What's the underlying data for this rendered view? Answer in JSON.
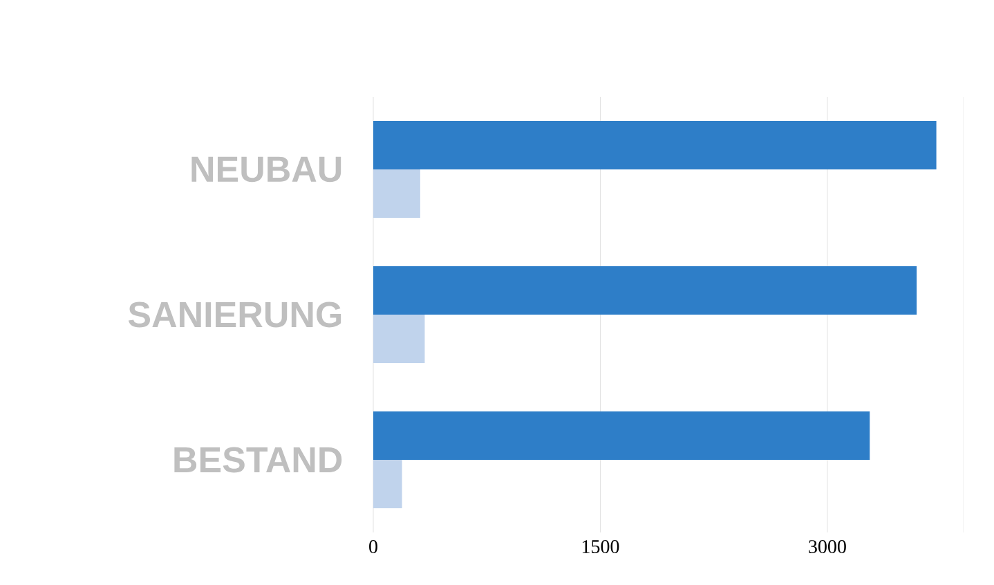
{
  "chart_data": {
    "type": "bar",
    "orientation": "horizontal",
    "categories": [
      "NEUBAU",
      "SANIERUNG",
      "BESTAND"
    ],
    "series": [
      {
        "color": "#2e7ec8",
        "values": [
          3720,
          3590,
          3280
        ]
      },
      {
        "color": "#c0d3ec",
        "values": [
          310,
          340,
          190
        ]
      }
    ],
    "xlim": [
      0,
      3900
    ],
    "xticks": [
      0,
      1500,
      3000
    ],
    "grid": "x"
  }
}
